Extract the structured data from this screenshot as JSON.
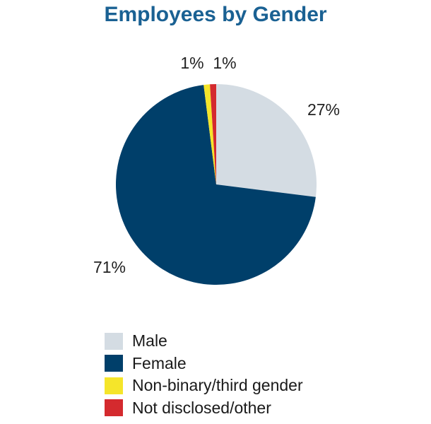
{
  "chart_data": {
    "type": "pie",
    "title": "Employees by Gender",
    "slices": [
      {
        "name": "Male",
        "value": 27,
        "label": "27%",
        "color": "#d4dce3"
      },
      {
        "name": "Female",
        "value": 71,
        "label": "71%",
        "color": "#003f6a"
      },
      {
        "name": "Non-binary/third gender",
        "value": 1,
        "label": "1%",
        "color": "#f5e52a"
      },
      {
        "name": "Not disclosed/other",
        "value": 1,
        "label": "1%",
        "color": "#d42a2e"
      }
    ],
    "legend_position": "bottom"
  }
}
